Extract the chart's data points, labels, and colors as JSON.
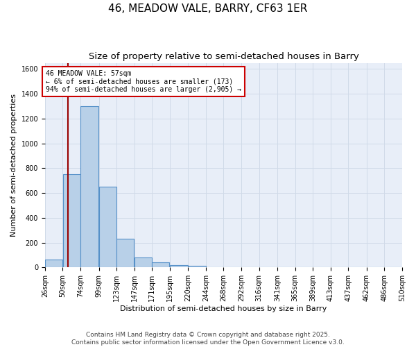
{
  "title": "46, MEADOW VALE, BARRY, CF63 1ER",
  "subtitle": "Size of property relative to semi-detached houses in Barry",
  "xlabel": "Distribution of semi-detached houses by size in Barry",
  "ylabel": "Number of semi-detached properties",
  "footer_line1": "Contains HM Land Registry data © Crown copyright and database right 2025.",
  "footer_line2": "Contains public sector information licensed under the Open Government Licence v3.0.",
  "bin_edges": [
    26,
    50,
    74,
    99,
    123,
    147,
    171,
    195,
    220,
    244,
    268,
    292,
    316,
    341,
    365,
    389,
    413,
    437,
    462,
    486,
    510
  ],
  "bin_labels": [
    "26sqm",
    "50sqm",
    "74sqm",
    "99sqm",
    "123sqm",
    "147sqm",
    "171sqm",
    "195sqm",
    "220sqm",
    "244sqm",
    "268sqm",
    "292sqm",
    "316sqm",
    "341sqm",
    "365sqm",
    "389sqm",
    "413sqm",
    "437sqm",
    "462sqm",
    "486sqm",
    "510sqm"
  ],
  "counts": [
    65,
    750,
    1300,
    650,
    230,
    80,
    40,
    20,
    15,
    0,
    0,
    0,
    0,
    0,
    0,
    0,
    0,
    0,
    0,
    0
  ],
  "bar_color": "#b8d0e8",
  "bar_edge_color": "#5590c8",
  "grid_color": "#d0dae8",
  "bg_color": "#e8eef8",
  "property_size": 57,
  "red_line_color": "#990000",
  "annotation_text": "46 MEADOW VALE: 57sqm\n← 6% of semi-detached houses are smaller (173)\n94% of semi-detached houses are larger (2,905) →",
  "annotation_box_color": "#ffffff",
  "annotation_border_color": "#cc0000",
  "ylim": [
    0,
    1650
  ],
  "yticks": [
    0,
    200,
    400,
    600,
    800,
    1000,
    1200,
    1400,
    1600
  ],
  "title_fontsize": 11,
  "subtitle_fontsize": 9.5,
  "axis_label_fontsize": 8,
  "tick_fontsize": 7,
  "annotation_fontsize": 7,
  "footer_fontsize": 6.5
}
